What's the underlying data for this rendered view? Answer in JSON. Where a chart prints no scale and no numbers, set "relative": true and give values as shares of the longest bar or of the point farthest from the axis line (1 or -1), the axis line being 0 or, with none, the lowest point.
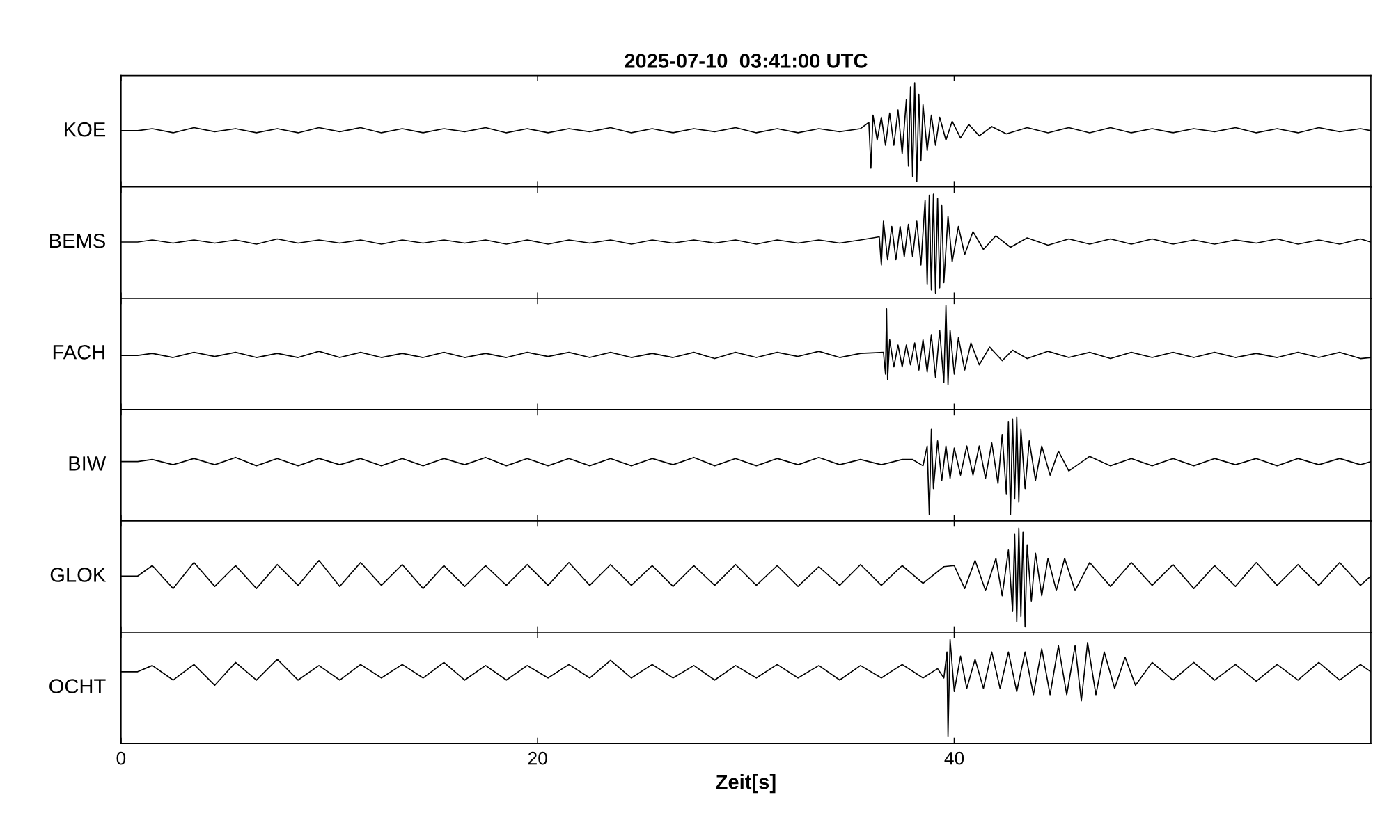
{
  "chart_data": [
    {
      "type": "line",
      "title": "2025-07-10  03:41:00 UTC",
      "ylabel": "KOE",
      "relative": true,
      "xlim": [
        0,
        60
      ],
      "xticks": [
        0,
        20,
        40
      ],
      "tick_labels": false,
      "series": [
        {
          "color": "#000000",
          "x": [
            0,
            0.8,
            1.5,
            2.5,
            3.5,
            4.5,
            5.5,
            6.5,
            7.5,
            8.5,
            9.5,
            10.5,
            11.5,
            12.5,
            13.5,
            14.5,
            15.5,
            16.5,
            17.5,
            18.5,
            19.5,
            20.5,
            21.5,
            22.5,
            23.5,
            24.5,
            25.5,
            26.5,
            27.5,
            28.5,
            29.5,
            30.5,
            31.5,
            32.5,
            33.5,
            34.5,
            35.5,
            35.9,
            36.0,
            36.1,
            36.3,
            36.5,
            36.7,
            36.9,
            37.1,
            37.3,
            37.5,
            37.7,
            37.8,
            37.9,
            38.0,
            38.1,
            38.2,
            38.3,
            38.4,
            38.5,
            38.7,
            38.9,
            39.1,
            39.3,
            39.6,
            39.9,
            40.3,
            40.7,
            41.2,
            41.8,
            42.5,
            43.5,
            44.5,
            45.5,
            46.5,
            47.5,
            48.5,
            49.5,
            50.5,
            51.5,
            52.5,
            53.5,
            54.5,
            55.5,
            56.5,
            57.5,
            58.5,
            59.5,
            60.0
          ],
          "values": [
            0.54,
            0.54,
            0.56,
            0.52,
            0.57,
            0.53,
            0.56,
            0.52,
            0.56,
            0.52,
            0.57,
            0.53,
            0.57,
            0.52,
            0.56,
            0.52,
            0.56,
            0.53,
            0.57,
            0.52,
            0.56,
            0.52,
            0.56,
            0.53,
            0.57,
            0.52,
            0.56,
            0.52,
            0.56,
            0.53,
            0.57,
            0.52,
            0.56,
            0.52,
            0.56,
            0.53,
            0.56,
            0.62,
            0.18,
            0.69,
            0.45,
            0.67,
            0.4,
            0.71,
            0.4,
            0.74,
            0.32,
            0.84,
            0.2,
            0.96,
            0.1,
            1,
            0.05,
            0.89,
            0.25,
            0.79,
            0.35,
            0.69,
            0.4,
            0.67,
            0.45,
            0.63,
            0.47,
            0.6,
            0.49,
            0.58,
            0.51,
            0.57,
            0.52,
            0.57,
            0.52,
            0.57,
            0.52,
            0.56,
            0.52,
            0.56,
            0.53,
            0.57,
            0.52,
            0.56,
            0.52,
            0.57,
            0.53,
            0.56,
            0.54
          ]
        }
      ]
    },
    {
      "type": "line",
      "ylabel": "BEMS",
      "relative": true,
      "xlim": [
        0,
        60
      ],
      "xticks": [
        0,
        20,
        40
      ],
      "tick_labels": false,
      "series": [
        {
          "color": "#000000",
          "x": [
            0,
            0.8,
            1.5,
            2.5,
            3.5,
            4.5,
            5.5,
            6.5,
            7.5,
            8.5,
            9.5,
            10.5,
            11.5,
            12.5,
            13.5,
            14.5,
            15.5,
            16.5,
            17.5,
            18.5,
            19.5,
            20.5,
            21.5,
            22.5,
            23.5,
            24.5,
            25.5,
            26.5,
            27.5,
            28.5,
            29.5,
            30.5,
            31.5,
            32.5,
            33.5,
            34.5,
            35.5,
            36.4,
            36.5,
            36.6,
            36.8,
            37.0,
            37.2,
            37.4,
            37.6,
            37.8,
            38.0,
            38.2,
            38.4,
            38.6,
            38.7,
            38.8,
            38.9,
            39.0,
            39.1,
            39.2,
            39.3,
            39.4,
            39.5,
            39.7,
            39.9,
            40.2,
            40.5,
            40.9,
            41.4,
            42.0,
            42.7,
            43.5,
            44.5,
            45.5,
            46.5,
            47.5,
            48.5,
            49.5,
            50.5,
            51.5,
            52.5,
            53.5,
            54.5,
            55.5,
            56.5,
            57.5,
            58.5,
            59.5,
            60.0
          ],
          "values": [
            0.54,
            0.54,
            0.56,
            0.53,
            0.56,
            0.53,
            0.56,
            0.52,
            0.57,
            0.53,
            0.56,
            0.53,
            0.56,
            0.52,
            0.56,
            0.53,
            0.56,
            0.53,
            0.56,
            0.52,
            0.56,
            0.52,
            0.56,
            0.53,
            0.56,
            0.52,
            0.56,
            0.53,
            0.56,
            0.53,
            0.56,
            0.52,
            0.56,
            0.53,
            0.56,
            0.53,
            0.56,
            0.59,
            0.32,
            0.74,
            0.37,
            0.69,
            0.37,
            0.69,
            0.4,
            0.71,
            0.4,
            0.74,
            0.32,
            0.94,
            0.13,
            0.99,
            0.08,
            1,
            0.05,
            0.96,
            0.1,
            0.89,
            0.15,
            0.79,
            0.35,
            0.69,
            0.42,
            0.64,
            0.47,
            0.6,
            0.49,
            0.58,
            0.51,
            0.57,
            0.52,
            0.57,
            0.52,
            0.57,
            0.52,
            0.56,
            0.52,
            0.56,
            0.53,
            0.57,
            0.52,
            0.56,
            0.52,
            0.57,
            0.54
          ]
        }
      ]
    },
    {
      "type": "line",
      "ylabel": "FACH",
      "relative": true,
      "xlim": [
        0,
        60
      ],
      "xticks": [
        0,
        20,
        40
      ],
      "tick_labels": false,
      "series": [
        {
          "color": "#000000",
          "x": [
            0,
            0.8,
            1.5,
            2.5,
            3.5,
            4.5,
            5.5,
            6.5,
            7.5,
            8.5,
            9.5,
            10.5,
            11.5,
            12.5,
            13.5,
            14.5,
            15.5,
            16.5,
            17.5,
            18.5,
            19.5,
            20.5,
            21.5,
            22.5,
            23.5,
            24.5,
            25.5,
            26.5,
            27.5,
            28.5,
            29.5,
            30.5,
            31.5,
            32.5,
            33.5,
            34.5,
            35.5,
            36.6,
            36.7,
            36.75,
            36.8,
            36.9,
            37.1,
            37.3,
            37.5,
            37.7,
            37.9,
            38.1,
            38.3,
            38.5,
            38.7,
            38.9,
            39.1,
            39.3,
            39.5,
            39.6,
            39.7,
            39.8,
            40.0,
            40.2,
            40.5,
            40.8,
            41.2,
            41.7,
            42.3,
            42.8,
            43.5,
            44.5,
            45.5,
            46.5,
            47.5,
            48.5,
            49.5,
            50.5,
            51.5,
            52.5,
            53.5,
            54.5,
            55.5,
            56.5,
            57.5,
            58.5,
            59.5,
            60.0
          ],
          "values": [
            0.52,
            0.52,
            0.54,
            0.5,
            0.55,
            0.51,
            0.55,
            0.5,
            0.54,
            0.5,
            0.56,
            0.5,
            0.55,
            0.5,
            0.54,
            0.5,
            0.55,
            0.5,
            0.54,
            0.5,
            0.55,
            0.51,
            0.55,
            0.5,
            0.55,
            0.5,
            0.54,
            0.5,
            0.55,
            0.49,
            0.55,
            0.5,
            0.55,
            0.51,
            0.56,
            0.5,
            0.54,
            0.55,
            0.34,
            0.97,
            0.29,
            0.67,
            0.41,
            0.62,
            0.41,
            0.62,
            0.43,
            0.64,
            0.38,
            0.67,
            0.36,
            0.72,
            0.31,
            0.76,
            0.26,
            1,
            0.24,
            0.76,
            0.34,
            0.69,
            0.38,
            0.64,
            0.43,
            0.6,
            0.47,
            0.57,
            0.49,
            0.56,
            0.5,
            0.55,
            0.49,
            0.55,
            0.5,
            0.55,
            0.5,
            0.55,
            0.5,
            0.54,
            0.5,
            0.55,
            0.5,
            0.55,
            0.49,
            0.5
          ]
        }
      ]
    },
    {
      "type": "line",
      "ylabel": "BIW",
      "relative": true,
      "xlim": [
        0,
        60
      ],
      "xticks": [
        0,
        20,
        40
      ],
      "tick_labels": false,
      "series": [
        {
          "color": "#000000",
          "x": [
            0,
            0.8,
            1.5,
            2.5,
            3.5,
            4.5,
            5.5,
            6.5,
            7.5,
            8.5,
            9.5,
            10.5,
            11.5,
            12.5,
            13.5,
            14.5,
            15.5,
            16.5,
            17.5,
            18.5,
            19.5,
            20.5,
            21.5,
            22.5,
            23.5,
            24.5,
            25.5,
            26.5,
            27.5,
            28.5,
            29.5,
            30.5,
            31.5,
            32.5,
            33.5,
            34.5,
            35.5,
            36.5,
            37.5,
            38.0,
            38.5,
            38.7,
            38.8,
            38.9,
            39.0,
            39.2,
            39.4,
            39.6,
            39.8,
            40.0,
            40.3,
            40.6,
            40.9,
            41.2,
            41.5,
            41.8,
            42.1,
            42.3,
            42.5,
            42.6,
            42.7,
            42.8,
            42.9,
            43.0,
            43.1,
            43.2,
            43.4,
            43.6,
            43.9,
            44.2,
            44.6,
            45.0,
            45.5,
            46.5,
            47.5,
            48.5,
            49.5,
            50.5,
            51.5,
            52.5,
            53.5,
            54.5,
            55.5,
            56.5,
            57.5,
            58.5,
            59.5,
            60.0
          ],
          "values": [
            0.57,
            0.57,
            0.59,
            0.54,
            0.6,
            0.54,
            0.61,
            0.53,
            0.6,
            0.53,
            0.6,
            0.54,
            0.6,
            0.53,
            0.6,
            0.53,
            0.6,
            0.54,
            0.61,
            0.53,
            0.6,
            0.53,
            0.6,
            0.53,
            0.6,
            0.53,
            0.6,
            0.54,
            0.61,
            0.53,
            0.6,
            0.53,
            0.6,
            0.54,
            0.61,
            0.54,
            0.59,
            0.54,
            0.59,
            0.59,
            0.53,
            0.72,
            0.06,
            0.88,
            0.31,
            0.77,
            0.39,
            0.72,
            0.41,
            0.7,
            0.44,
            0.72,
            0.44,
            0.72,
            0.41,
            0.75,
            0.36,
            0.83,
            0.26,
            0.95,
            0.06,
            0.98,
            0.21,
            1,
            0.18,
            0.88,
            0.31,
            0.77,
            0.39,
            0.72,
            0.44,
            0.67,
            0.48,
            0.62,
            0.53,
            0.6,
            0.53,
            0.6,
            0.53,
            0.6,
            0.54,
            0.6,
            0.53,
            0.6,
            0.54,
            0.6,
            0.54,
            0.57
          ]
        }
      ]
    },
    {
      "type": "line",
      "ylabel": "GLOK",
      "relative": true,
      "xlim": [
        0,
        60
      ],
      "xticks": [
        0,
        20,
        40
      ],
      "tick_labels": false,
      "series": [
        {
          "color": "#000000",
          "x": [
            0,
            0.8,
            1.5,
            2.5,
            3.5,
            4.5,
            5.5,
            6.5,
            7.5,
            8.5,
            9.5,
            10.5,
            11.5,
            12.5,
            13.5,
            14.5,
            15.5,
            16.5,
            17.5,
            18.5,
            19.5,
            20.5,
            21.5,
            22.5,
            23.5,
            24.5,
            25.5,
            26.5,
            27.5,
            28.5,
            29.5,
            30.5,
            31.5,
            32.5,
            33.5,
            34.5,
            35.5,
            36.5,
            37.5,
            38.5,
            39.5,
            40.0,
            40.5,
            41.0,
            41.5,
            42.0,
            42.3,
            42.6,
            42.8,
            42.9,
            43.0,
            43.1,
            43.2,
            43.3,
            43.4,
            43.5,
            43.7,
            43.9,
            44.2,
            44.5,
            44.9,
            45.3,
            45.8,
            46.5,
            47.5,
            48.5,
            49.5,
            50.5,
            51.5,
            52.5,
            53.5,
            54.5,
            55.5,
            56.5,
            57.5,
            58.5,
            59.5,
            60.0
          ],
          "values": [
            0.54,
            0.54,
            0.64,
            0.42,
            0.67,
            0.44,
            0.64,
            0.42,
            0.65,
            0.45,
            0.69,
            0.44,
            0.67,
            0.45,
            0.65,
            0.42,
            0.64,
            0.44,
            0.64,
            0.45,
            0.65,
            0.45,
            0.67,
            0.45,
            0.65,
            0.45,
            0.64,
            0.44,
            0.64,
            0.45,
            0.65,
            0.45,
            0.64,
            0.44,
            0.63,
            0.45,
            0.65,
            0.45,
            0.64,
            0.47,
            0.63,
            0.64,
            0.42,
            0.69,
            0.4,
            0.71,
            0.35,
            0.79,
            0.2,
            0.94,
            0.1,
            1,
            0.15,
            0.96,
            0.05,
            0.84,
            0.3,
            0.76,
            0.35,
            0.71,
            0.4,
            0.71,
            0.4,
            0.67,
            0.44,
            0.67,
            0.45,
            0.65,
            0.42,
            0.64,
            0.44,
            0.67,
            0.45,
            0.65,
            0.45,
            0.67,
            0.45,
            0.54
          ]
        }
      ]
    },
    {
      "type": "line",
      "ylabel": "OCHT",
      "xlabel": "Zeit[s]",
      "relative": true,
      "xlim": [
        0,
        60
      ],
      "xticks": [
        0,
        20,
        40
      ],
      "tick_labels": "x",
      "series": [
        {
          "color": "#000000",
          "x": [
            0,
            0.8,
            1.5,
            2.5,
            3.5,
            4.5,
            5.5,
            6.5,
            7.5,
            8.5,
            9.5,
            10.5,
            11.5,
            12.5,
            13.5,
            14.5,
            15.5,
            16.5,
            17.5,
            18.5,
            19.5,
            20.5,
            21.5,
            22.5,
            23.5,
            24.5,
            25.5,
            26.5,
            27.5,
            28.5,
            29.5,
            30.5,
            31.5,
            32.5,
            33.5,
            34.5,
            35.5,
            36.5,
            37.5,
            38.5,
            39.2,
            39.5,
            39.65,
            39.7,
            39.8,
            40.0,
            40.3,
            40.6,
            41.0,
            41.4,
            41.8,
            42.2,
            42.6,
            43.0,
            43.4,
            43.8,
            44.2,
            44.6,
            45.0,
            45.4,
            45.8,
            46.1,
            46.4,
            46.8,
            47.2,
            47.7,
            48.2,
            48.7,
            49.5,
            50.5,
            51.5,
            52.5,
            53.5,
            54.5,
            55.5,
            56.5,
            57.5,
            58.5,
            59.5,
            60.0
          ],
          "values": [
            0.69,
            0.69,
            0.75,
            0.61,
            0.76,
            0.56,
            0.78,
            0.61,
            0.81,
            0.61,
            0.75,
            0.61,
            0.76,
            0.63,
            0.76,
            0.63,
            0.78,
            0.61,
            0.75,
            0.61,
            0.75,
            0.63,
            0.76,
            0.63,
            0.8,
            0.63,
            0.76,
            0.63,
            0.75,
            0.61,
            0.75,
            0.63,
            0.76,
            0.63,
            0.75,
            0.61,
            0.75,
            0.63,
            0.76,
            0.63,
            0.72,
            0.63,
            0.88,
            0.07,
            1,
            0.5,
            0.84,
            0.53,
            0.81,
            0.53,
            0.88,
            0.53,
            0.88,
            0.5,
            0.88,
            0.47,
            0.91,
            0.47,
            0.94,
            0.47,
            0.94,
            0.41,
            0.97,
            0.47,
            0.88,
            0.53,
            0.83,
            0.56,
            0.78,
            0.61,
            0.78,
            0.61,
            0.76,
            0.6,
            0.76,
            0.61,
            0.78,
            0.61,
            0.76,
            0.69
          ]
        }
      ]
    }
  ]
}
